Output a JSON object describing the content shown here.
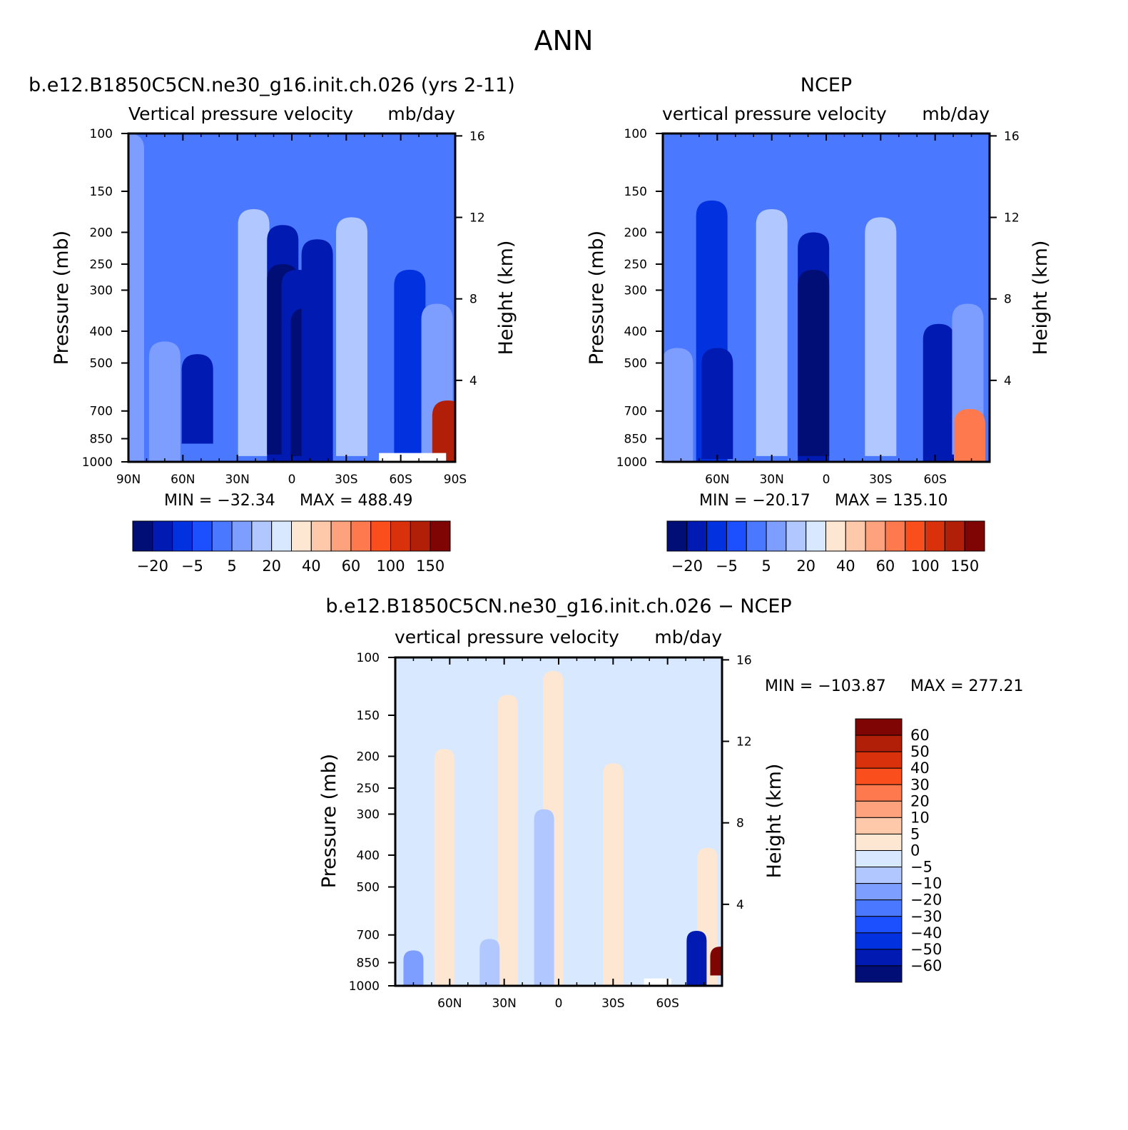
{
  "figure": {
    "title": "ANN"
  },
  "chart_data": [
    {
      "type": "heatmap",
      "title": "b.e12.B1850C5CN.ne30_g16.init.ch.026 (yrs 2-11)",
      "subtitle_left": "Vertical pressure velocity",
      "subtitle_right": "mb/day",
      "ylabel": "Pressure (mb)",
      "ylabel_right": "Height (km)",
      "xlim": [
        90,
        -90
      ],
      "ylim": [
        1000,
        100
      ],
      "y_scale": "log",
      "x_ticks": [
        {
          "value": 90,
          "label": "90N"
        },
        {
          "value": 60,
          "label": "60N"
        },
        {
          "value": 30,
          "label": "30N"
        },
        {
          "value": 0,
          "label": "0"
        },
        {
          "value": -30,
          "label": "30S"
        },
        {
          "value": -60,
          "label": "60S"
        },
        {
          "value": -90,
          "label": "90S"
        }
      ],
      "y_ticks": [
        100,
        150,
        200,
        250,
        300,
        400,
        500,
        700,
        850,
        1000
      ],
      "y_right_ticks": [
        4,
        8,
        12,
        16
      ],
      "min_label": "MIN = −32.34",
      "max_label": "MAX = 488.49",
      "colorbar": {
        "orientation": "horizontal",
        "labels": [
          "−20",
          "−5",
          "5",
          "20",
          "40",
          "60",
          "100",
          "150"
        ],
        "colors": [
          "#000e75",
          "#001ab2",
          "#0231e0",
          "#1c50ff",
          "#4a78ff",
          "#7d9dff",
          "#b0c8ff",
          "#d7e8ff",
          "#fee7d2",
          "#fec8aa",
          "#fea27d",
          "#fe7a4e",
          "#fb4e1d",
          "#d9310c",
          "#b11f08",
          "#7f0404"
        ]
      },
      "bands": [
        {
          "lat": 90,
          "p0": 1000,
          "p1": 100,
          "level": 5
        },
        {
          "lat": 70,
          "p0": 1000,
          "p1": 430,
          "level": 5
        },
        {
          "lat": 52,
          "p0": 880,
          "p1": 470,
          "level": 1
        },
        {
          "lat": 21,
          "p0": 960,
          "p1": 170,
          "level": 6
        },
        {
          "lat": 5,
          "p0": 1000,
          "p1": 190,
          "level": 1
        },
        {
          "lat": 5,
          "p0": 950,
          "p1": 250,
          "level": 0
        },
        {
          "lat": -3,
          "p0": 1000,
          "p1": 260,
          "level": 1
        },
        {
          "lat": -8,
          "p0": 960,
          "p1": 340,
          "level": 0
        },
        {
          "lat": -14,
          "p0": 1000,
          "p1": 210,
          "level": 1
        },
        {
          "lat": -33,
          "p0": 960,
          "p1": 180,
          "level": 6
        },
        {
          "lat": -65,
          "p0": 1000,
          "p1": 260,
          "level": 2
        },
        {
          "lat": -80,
          "p0": 960,
          "p1": 330,
          "level": 5
        }
      ],
      "warm_spots": [
        {
          "lat": -86,
          "p0": 1000,
          "p1": 650,
          "level": 14
        }
      ],
      "missing": [
        {
          "lat0": -48,
          "lat1": -85,
          "p0": 1000,
          "p1": 940
        }
      ]
    },
    {
      "type": "heatmap",
      "title": "NCEP",
      "subtitle_left": "vertical pressure velocity",
      "subtitle_right": "mb/day",
      "ylabel": "Pressure (mb)",
      "ylabel_right": "Height (km)",
      "xlim": [
        90,
        -90
      ],
      "ylim": [
        1000,
        100
      ],
      "y_scale": "log",
      "x_ticks": [
        {
          "value": 60,
          "label": "60N"
        },
        {
          "value": 30,
          "label": "30N"
        },
        {
          "value": 0,
          "label": "0"
        },
        {
          "value": -30,
          "label": "30S"
        },
        {
          "value": -60,
          "label": "60S"
        }
      ],
      "y_ticks": [
        100,
        150,
        200,
        250,
        300,
        400,
        500,
        700,
        850,
        1000
      ],
      "y_right_ticks": [
        4,
        8,
        12,
        16
      ],
      "min_label": "MIN = −20.17",
      "max_label": "MAX = 135.10",
      "colorbar": {
        "orientation": "horizontal",
        "labels": [
          "−20",
          "−5",
          "5",
          "20",
          "40",
          "60",
          "100",
          "150"
        ],
        "colors": [
          "#000e75",
          "#001ab2",
          "#0231e0",
          "#1c50ff",
          "#4a78ff",
          "#7d9dff",
          "#b0c8ff",
          "#d7e8ff",
          "#fee7d2",
          "#fec8aa",
          "#fea27d",
          "#fe7a4e",
          "#fb4e1d",
          "#d9310c",
          "#b11f08",
          "#7f0404"
        ]
      },
      "bands": [
        {
          "lat": 82,
          "p0": 1000,
          "p1": 450,
          "level": 5
        },
        {
          "lat": 63,
          "p0": 1000,
          "p1": 160,
          "level": 2
        },
        {
          "lat": 60,
          "p0": 980,
          "p1": 450,
          "level": 1
        },
        {
          "lat": 30,
          "p0": 960,
          "p1": 170,
          "level": 6
        },
        {
          "lat": 7,
          "p0": 1000,
          "p1": 200,
          "level": 1
        },
        {
          "lat": 7,
          "p0": 960,
          "p1": 260,
          "level": 0
        },
        {
          "lat": -30,
          "p0": 960,
          "p1": 180,
          "level": 6
        },
        {
          "lat": -62,
          "p0": 1000,
          "p1": 380,
          "level": 1
        },
        {
          "lat": -78,
          "p0": 950,
          "p1": 330,
          "level": 5
        }
      ],
      "warm_spots": [
        {
          "lat": -79,
          "p0": 1000,
          "p1": 690,
          "level": 11
        }
      ],
      "missing": []
    },
    {
      "type": "heatmap",
      "title": "b.e12.B1850C5CN.ne30_g16.init.ch.026 − NCEP",
      "subtitle_left": "vertical pressure velocity",
      "subtitle_right": "mb/day",
      "ylabel": "Pressure (mb)",
      "ylabel_right": "Height (km)",
      "xlim": [
        90,
        -90
      ],
      "ylim": [
        1000,
        100
      ],
      "y_scale": "log",
      "x_ticks": [
        {
          "value": 60,
          "label": "60N"
        },
        {
          "value": 30,
          "label": "30N"
        },
        {
          "value": 0,
          "label": "0"
        },
        {
          "value": -30,
          "label": "30S"
        },
        {
          "value": -60,
          "label": "60S"
        }
      ],
      "y_ticks": [
        100,
        150,
        200,
        250,
        300,
        400,
        500,
        700,
        850,
        1000
      ],
      "y_right_ticks": [
        4,
        8,
        12,
        16
      ],
      "min_label": "MIN = −103.87",
      "max_label": "MAX = 277.21",
      "colorbar": {
        "orientation": "vertical",
        "labels": [
          "60",
          "50",
          "40",
          "30",
          "20",
          "10",
          "5",
          "0",
          "−5",
          "−10",
          "−20",
          "−30",
          "−40",
          "−50",
          "−60"
        ],
        "colors": [
          "#7f0404",
          "#b11f08",
          "#d9310c",
          "#fb4e1d",
          "#fe7a4e",
          "#fea27d",
          "#fec8aa",
          "#fee7d2",
          "#d7e8ff",
          "#b0c8ff",
          "#7d9dff",
          "#4a78ff",
          "#1c50ff",
          "#0231e0",
          "#001ab2",
          "#000e75"
        ]
      },
      "bands": [
        {
          "lat": 63,
          "p0": 1000,
          "p1": 190,
          "level": 8
        },
        {
          "lat": 28,
          "p0": 1000,
          "p1": 130,
          "level": 8
        },
        {
          "lat": 3,
          "p0": 1000,
          "p1": 110,
          "level": 8
        },
        {
          "lat": -30,
          "p0": 1000,
          "p1": 210,
          "level": 8
        },
        {
          "lat": 8,
          "p0": 1000,
          "p1": 290,
          "level": 6
        },
        {
          "lat": -82,
          "p0": 1000,
          "p1": 380,
          "level": 8
        },
        {
          "lat": 38,
          "p0": 1000,
          "p1": 720,
          "level": 6
        },
        {
          "lat": 80,
          "p0": 1000,
          "p1": 780,
          "level": 5
        }
      ],
      "warm_spots": [
        {
          "lat": -89,
          "p0": 930,
          "p1": 760,
          "level": 15
        }
      ],
      "cold_spots": [
        {
          "lat": -76,
          "p0": 1000,
          "p1": 680,
          "level": 1
        }
      ],
      "missing": [
        {
          "lat0": -47,
          "lat1": -62,
          "p0": 1000,
          "p1": 950
        }
      ]
    }
  ]
}
